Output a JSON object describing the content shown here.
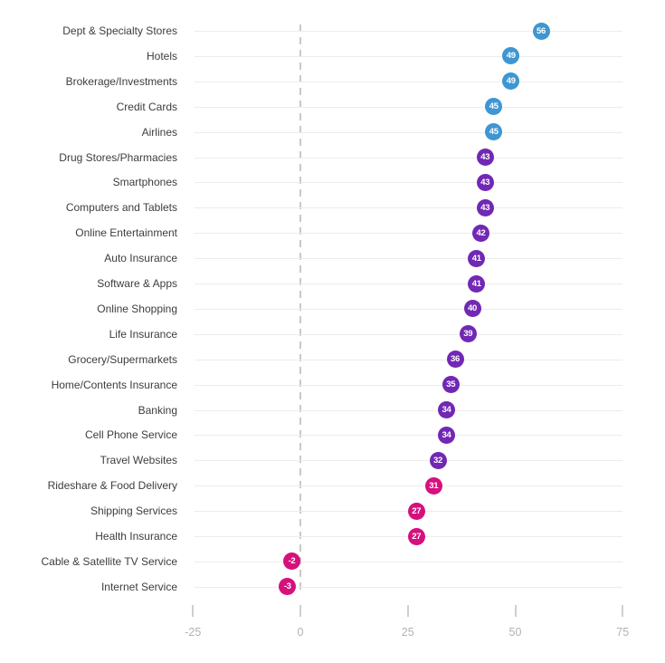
{
  "chart_data": {
    "type": "scatter",
    "subtype": "horizontal-dot-plot",
    "title": "",
    "categories": [
      "Dept & Specialty Stores",
      "Hotels",
      "Brokerage/Investments",
      "Credit Cards",
      "Airlines",
      "Drug Stores/Pharmacies",
      "Smartphones",
      "Computers and Tablets",
      "Online Entertainment",
      "Auto Insurance",
      "Software & Apps",
      "Online Shopping",
      "Life Insurance",
      "Grocery/Supermarkets",
      "Home/Contents Insurance",
      "Banking",
      "Cell Phone Service",
      "Travel Websites",
      "Rideshare & Food Delivery",
      "Shipping Services",
      "Health Insurance",
      "Cable & Satellite TV Service",
      "Internet Service"
    ],
    "values": [
      56,
      49,
      49,
      45,
      45,
      43,
      43,
      43,
      42,
      41,
      41,
      40,
      39,
      36,
      35,
      34,
      34,
      32,
      31,
      27,
      27,
      -2,
      -3
    ],
    "point_groups": [
      "blue",
      "blue",
      "blue",
      "blue",
      "blue",
      "purple",
      "purple",
      "purple",
      "purple",
      "purple",
      "purple",
      "purple",
      "purple",
      "purple",
      "purple",
      "purple",
      "purple",
      "purple",
      "pink",
      "pink",
      "pink",
      "pink",
      "pink"
    ],
    "palette": {
      "blue": "#3E96D2",
      "purple": "#7128B4",
      "pink": "#D6107D"
    },
    "x_axis": {
      "ticks": [
        -25,
        0,
        25,
        50,
        75
      ],
      "range": [
        -25,
        75
      ]
    },
    "zero_line": {
      "value": 0,
      "style": "dashed",
      "color": "#c9c9c9"
    },
    "grid": "horizontal-row-lines",
    "legend": null
  }
}
